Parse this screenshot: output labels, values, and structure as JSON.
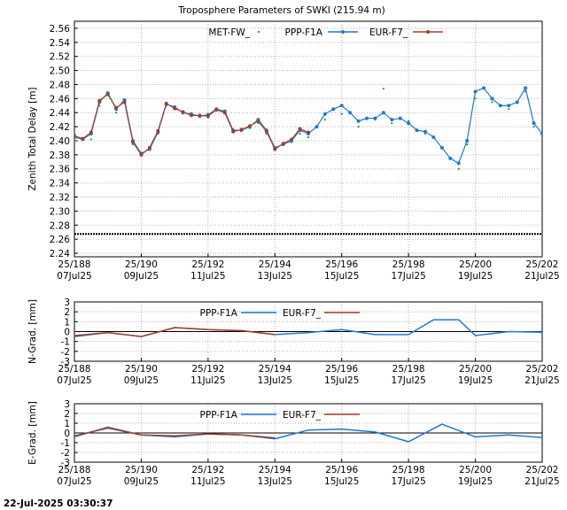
{
  "figure": {
    "footer_timestamp": "22-Jul-2025 03:30:37"
  },
  "colors": {
    "met_fw": "#2ca02c",
    "ppp_f1a": "#1f77d4",
    "eur_f7": "#a0402a",
    "axis": "#000000",
    "grid": "#b0b0b0"
  },
  "chart_data": [
    {
      "type": "scatter",
      "title": "Troposphere Parameters of SWKI (215.94 m)",
      "xlabel": "",
      "ylabel": "Zenith Total Delay [m]",
      "xlim": [
        "2025-07-07",
        "2025-07-21"
      ],
      "ylim": [
        2.235,
        2.57
      ],
      "x_ticks": [
        {
          "top": "25/188",
          "bottom": "07Jul25"
        },
        {
          "top": "25/190",
          "bottom": "09Jul25"
        },
        {
          "top": "25/192",
          "bottom": "11Jul25"
        },
        {
          "top": "25/194",
          "bottom": "13Jul25"
        },
        {
          "top": "25/196",
          "bottom": "15Jul25"
        },
        {
          "top": "25/198",
          "bottom": "17Jul25"
        },
        {
          "top": "25/200",
          "bottom": "19Jul25"
        },
        {
          "top": "25/202",
          "bottom": "21Jul25"
        }
      ],
      "y_ticks": [
        "2.24",
        "2.26",
        "2.28",
        "2.30",
        "2.32",
        "2.34",
        "2.36",
        "2.38",
        "2.40",
        "2.42",
        "2.44",
        "2.46",
        "2.48",
        "2.50",
        "2.52",
        "2.54",
        "2.56"
      ],
      "grid": true,
      "legend": "top",
      "series": [
        {
          "name": "MET-FW_",
          "points": [
            [
              "2025-07-07 00:00",
              2.4
            ],
            [
              "2025-07-07 12:00",
              2.402
            ],
            [
              "2025-07-07 18:00",
              2.45
            ],
            [
              "2025-07-08 00:00",
              2.465
            ],
            [
              "2025-07-08 06:00",
              2.44
            ],
            [
              "2025-07-08 12:00",
              2.455
            ],
            [
              "2025-07-08 18:00",
              2.395
            ],
            [
              "2025-07-09 00:00",
              2.38
            ],
            [
              "2025-07-09 12:00",
              2.41
            ],
            [
              "2025-07-09 18:00",
              2.45
            ],
            [
              "2025-07-10 00:00",
              2.445
            ],
            [
              "2025-07-10 12:00",
              2.437
            ],
            [
              "2025-07-11 00:00",
              2.433
            ],
            [
              "2025-07-11 06:00",
              2.443
            ],
            [
              "2025-07-11 12:00",
              2.44
            ],
            [
              "2025-07-11 18:00",
              2.413
            ],
            [
              "2025-07-12 06:00",
              2.418
            ],
            [
              "2025-07-12 12:00",
              2.425
            ],
            [
              "2025-07-12 18:00",
              2.41
            ],
            [
              "2025-07-13 00:00",
              2.388
            ],
            [
              "2025-07-13 12:00",
              2.398
            ],
            [
              "2025-07-13 18:00",
              2.41
            ],
            [
              "2025-07-14 00:00",
              2.405
            ],
            [
              "2025-07-14 12:00",
              2.43
            ],
            [
              "2025-07-15 00:00",
              2.438
            ],
            [
              "2025-07-15 12:00",
              2.42
            ],
            [
              "2025-07-16 00:00",
              2.43
            ],
            [
              "2025-07-16 06:00",
              2.474
            ],
            [
              "2025-07-16 12:00",
              2.425
            ],
            [
              "2025-07-17 00:00",
              2.428
            ],
            [
              "2025-07-17 12:00",
              2.41
            ],
            [
              "2025-07-18 00:00",
              2.39
            ],
            [
              "2025-07-18 12:00",
              2.36
            ],
            [
              "2025-07-18 18:00",
              2.395
            ],
            [
              "2025-07-19 00:00",
              2.46
            ],
            [
              "2025-07-19 12:00",
              2.455
            ],
            [
              "2025-07-20 00:00",
              2.445
            ],
            [
              "2025-07-20 12:00",
              2.47
            ],
            [
              "2025-07-20 18:00",
              2.42
            ],
            [
              "2025-07-21 00:00",
              2.405
            ]
          ]
        },
        {
          "name": "PPP-F1A",
          "points": [
            [
              "2025-07-07 00:00",
              2.405
            ],
            [
              "2025-07-07 06:00",
              2.402
            ],
            [
              "2025-07-07 12:00",
              2.41
            ],
            [
              "2025-07-07 18:00",
              2.455
            ],
            [
              "2025-07-08 00:00",
              2.468
            ],
            [
              "2025-07-08 06:00",
              2.445
            ],
            [
              "2025-07-08 12:00",
              2.458
            ],
            [
              "2025-07-08 18:00",
              2.4
            ],
            [
              "2025-07-09 00:00",
              2.382
            ],
            [
              "2025-07-09 06:00",
              2.388
            ],
            [
              "2025-07-09 12:00",
              2.412
            ],
            [
              "2025-07-09 18:00",
              2.452
            ],
            [
              "2025-07-10 00:00",
              2.448
            ],
            [
              "2025-07-10 06:00",
              2.44
            ],
            [
              "2025-07-10 12:00",
              2.438
            ],
            [
              "2025-07-10 18:00",
              2.435
            ],
            [
              "2025-07-11 00:00",
              2.437
            ],
            [
              "2025-07-11 06:00",
              2.445
            ],
            [
              "2025-07-11 12:00",
              2.442
            ],
            [
              "2025-07-11 18:00",
              2.415
            ],
            [
              "2025-07-12 00:00",
              2.415
            ],
            [
              "2025-07-12 06:00",
              2.42
            ],
            [
              "2025-07-12 12:00",
              2.43
            ],
            [
              "2025-07-12 18:00",
              2.415
            ],
            [
              "2025-07-13 00:00",
              2.39
            ],
            [
              "2025-07-13 06:00",
              2.395
            ],
            [
              "2025-07-13 12:00",
              2.4
            ],
            [
              "2025-07-13 18:00",
              2.415
            ],
            [
              "2025-07-14 00:00",
              2.41
            ],
            [
              "2025-07-14 06:00",
              2.42
            ],
            [
              "2025-07-14 12:00",
              2.438
            ],
            [
              "2025-07-14 18:00",
              2.445
            ],
            [
              "2025-07-15 00:00",
              2.45
            ],
            [
              "2025-07-15 06:00",
              2.44
            ],
            [
              "2025-07-15 12:00",
              2.428
            ],
            [
              "2025-07-15 18:00",
              2.432
            ],
            [
              "2025-07-16 00:00",
              2.432
            ],
            [
              "2025-07-16 06:00",
              2.44
            ],
            [
              "2025-07-16 12:00",
              2.43
            ],
            [
              "2025-07-16 18:00",
              2.432
            ],
            [
              "2025-07-17 00:00",
              2.425
            ],
            [
              "2025-07-17 06:00",
              2.415
            ],
            [
              "2025-07-17 12:00",
              2.413
            ],
            [
              "2025-07-17 18:00",
              2.405
            ],
            [
              "2025-07-18 00:00",
              2.39
            ],
            [
              "2025-07-18 06:00",
              2.375
            ],
            [
              "2025-07-18 12:00",
              2.368
            ],
            [
              "2025-07-18 18:00",
              2.4
            ],
            [
              "2025-07-19 00:00",
              2.47
            ],
            [
              "2025-07-19 06:00",
              2.475
            ],
            [
              "2025-07-19 12:00",
              2.46
            ],
            [
              "2025-07-19 18:00",
              2.45
            ],
            [
              "2025-07-20 00:00",
              2.45
            ],
            [
              "2025-07-20 06:00",
              2.455
            ],
            [
              "2025-07-20 12:00",
              2.475
            ],
            [
              "2025-07-20 18:00",
              2.425
            ],
            [
              "2025-07-21 00:00",
              2.41
            ],
            [
              "2025-07-21 06:00",
              2.405
            ],
            [
              "2025-07-21 12:00",
              2.41
            ]
          ]
        },
        {
          "name": "EUR-F7_",
          "points": [
            [
              "2025-07-07 00:00",
              2.407
            ],
            [
              "2025-07-07 06:00",
              2.403
            ],
            [
              "2025-07-07 12:00",
              2.412
            ],
            [
              "2025-07-07 18:00",
              2.457
            ],
            [
              "2025-07-08 00:00",
              2.466
            ],
            [
              "2025-07-08 06:00",
              2.447
            ],
            [
              "2025-07-08 12:00",
              2.455
            ],
            [
              "2025-07-08 18:00",
              2.398
            ],
            [
              "2025-07-09 00:00",
              2.38
            ],
            [
              "2025-07-09 06:00",
              2.39
            ],
            [
              "2025-07-09 12:00",
              2.414
            ],
            [
              "2025-07-09 18:00",
              2.453
            ],
            [
              "2025-07-10 00:00",
              2.446
            ],
            [
              "2025-07-10 06:00",
              2.441
            ],
            [
              "2025-07-10 12:00",
              2.436
            ],
            [
              "2025-07-10 18:00",
              2.436
            ],
            [
              "2025-07-11 00:00",
              2.435
            ],
            [
              "2025-07-11 06:00",
              2.444
            ],
            [
              "2025-07-11 12:00",
              2.44
            ],
            [
              "2025-07-11 18:00",
              2.413
            ],
            [
              "2025-07-12 00:00",
              2.416
            ],
            [
              "2025-07-12 06:00",
              2.421
            ],
            [
              "2025-07-12 12:00",
              2.428
            ],
            [
              "2025-07-12 18:00",
              2.413
            ],
            [
              "2025-07-13 00:00",
              2.388
            ],
            [
              "2025-07-13 06:00",
              2.396
            ],
            [
              "2025-07-13 12:00",
              2.402
            ],
            [
              "2025-07-13 18:00",
              2.417
            ],
            [
              "2025-07-14 00:00",
              2.412
            ]
          ]
        },
        {
          "name": "",
          "points": [
            [
              "2025-07-07 00:00",
              2.2675
            ],
            [
              "2025-07-21 12:00",
              2.2675
            ]
          ]
        }
      ]
    },
    {
      "type": "line",
      "title": "",
      "xlabel": "",
      "ylabel": "N-Grad. [mm]",
      "xlim": [
        "2025-07-07",
        "2025-07-21"
      ],
      "ylim": [
        -3,
        3
      ],
      "x_ticks": [
        {
          "top": "25/188",
          "bottom": "07Jul25"
        },
        {
          "top": "25/190",
          "bottom": "09Jul25"
        },
        {
          "top": "25/192",
          "bottom": "11Jul25"
        },
        {
          "top": "25/194",
          "bottom": "13Jul25"
        },
        {
          "top": "25/196",
          "bottom": "15Jul25"
        },
        {
          "top": "25/198",
          "bottom": "17Jul25"
        },
        {
          "top": "25/200",
          "bottom": "19Jul25"
        },
        {
          "top": "25/202",
          "bottom": "21Jul25"
        }
      ],
      "y_ticks": [
        "3",
        "2",
        "1",
        "0",
        "-1",
        "-2",
        "-3"
      ],
      "grid": true,
      "legend": "top",
      "series": [
        {
          "name": "PPP-F1A",
          "points": [
            [
              "2025-07-07 00:00",
              -0.5
            ],
            [
              "2025-07-08 00:00",
              -0.1
            ],
            [
              "2025-07-09 00:00",
              -0.5
            ],
            [
              "2025-07-10 00:00",
              0.4
            ],
            [
              "2025-07-11 00:00",
              0.2
            ],
            [
              "2025-07-12 00:00",
              0.1
            ],
            [
              "2025-07-13 00:00",
              -0.3
            ],
            [
              "2025-07-14 00:00",
              -0.1
            ],
            [
              "2025-07-15 00:00",
              0.2
            ],
            [
              "2025-07-16 00:00",
              -0.3
            ],
            [
              "2025-07-17 00:00",
              -0.3
            ],
            [
              "2025-07-17 18:00",
              1.2
            ],
            [
              "2025-07-18 12:00",
              1.2
            ],
            [
              "2025-07-19 00:00",
              -0.4
            ],
            [
              "2025-07-20 00:00",
              0.0
            ],
            [
              "2025-07-21 12:00",
              -0.1
            ]
          ]
        },
        {
          "name": "EUR-F7_",
          "points": [
            [
              "2025-07-07 00:00",
              -0.4
            ],
            [
              "2025-07-08 00:00",
              -0.1
            ],
            [
              "2025-07-09 00:00",
              -0.5
            ],
            [
              "2025-07-10 00:00",
              0.4
            ],
            [
              "2025-07-11 00:00",
              0.2
            ],
            [
              "2025-07-12 00:00",
              0.1
            ],
            [
              "2025-07-13 00:00",
              -0.3
            ]
          ]
        }
      ]
    },
    {
      "type": "line",
      "title": "",
      "xlabel": "",
      "ylabel": "E-Grad. [mm]",
      "xlim": [
        "2025-07-07",
        "2025-07-21"
      ],
      "ylim": [
        -3,
        3
      ],
      "x_ticks": [
        {
          "top": "25/188",
          "bottom": "07Jul25"
        },
        {
          "top": "25/190",
          "bottom": "09Jul25"
        },
        {
          "top": "25/192",
          "bottom": "11Jul25"
        },
        {
          "top": "25/194",
          "bottom": "13Jul25"
        },
        {
          "top": "25/196",
          "bottom": "15Jul25"
        },
        {
          "top": "25/198",
          "bottom": "17Jul25"
        },
        {
          "top": "25/200",
          "bottom": "19Jul25"
        },
        {
          "top": "25/202",
          "bottom": "21Jul25"
        }
      ],
      "y_ticks": [
        "3",
        "2",
        "1",
        "0",
        "-1",
        "-2",
        "-3"
      ],
      "grid": true,
      "legend": "top",
      "series": [
        {
          "name": "PPP-F1A",
          "points": [
            [
              "2025-07-07 00:00",
              -0.4
            ],
            [
              "2025-07-08 00:00",
              0.6
            ],
            [
              "2025-07-09 00:00",
              -0.2
            ],
            [
              "2025-07-10 00:00",
              -0.4
            ],
            [
              "2025-07-11 00:00",
              -0.1
            ],
            [
              "2025-07-12 00:00",
              -0.2
            ],
            [
              "2025-07-13 00:00",
              -0.6
            ],
            [
              "2025-07-14 00:00",
              0.3
            ],
            [
              "2025-07-15 00:00",
              0.4
            ],
            [
              "2025-07-16 00:00",
              0.1
            ],
            [
              "2025-07-17 00:00",
              -0.9
            ],
            [
              "2025-07-18 00:00",
              0.9
            ],
            [
              "2025-07-19 00:00",
              -0.4
            ],
            [
              "2025-07-20 00:00",
              -0.2
            ],
            [
              "2025-07-21 12:00",
              -0.6
            ]
          ]
        },
        {
          "name": "EUR-F7_",
          "points": [
            [
              "2025-07-07 00:00",
              -0.3
            ],
            [
              "2025-07-08 00:00",
              0.5
            ],
            [
              "2025-07-09 00:00",
              -0.2
            ],
            [
              "2025-07-10 00:00",
              -0.3
            ],
            [
              "2025-07-11 00:00",
              -0.1
            ],
            [
              "2025-07-12 00:00",
              -0.2
            ],
            [
              "2025-07-13 00:00",
              -0.5
            ]
          ]
        }
      ]
    }
  ]
}
